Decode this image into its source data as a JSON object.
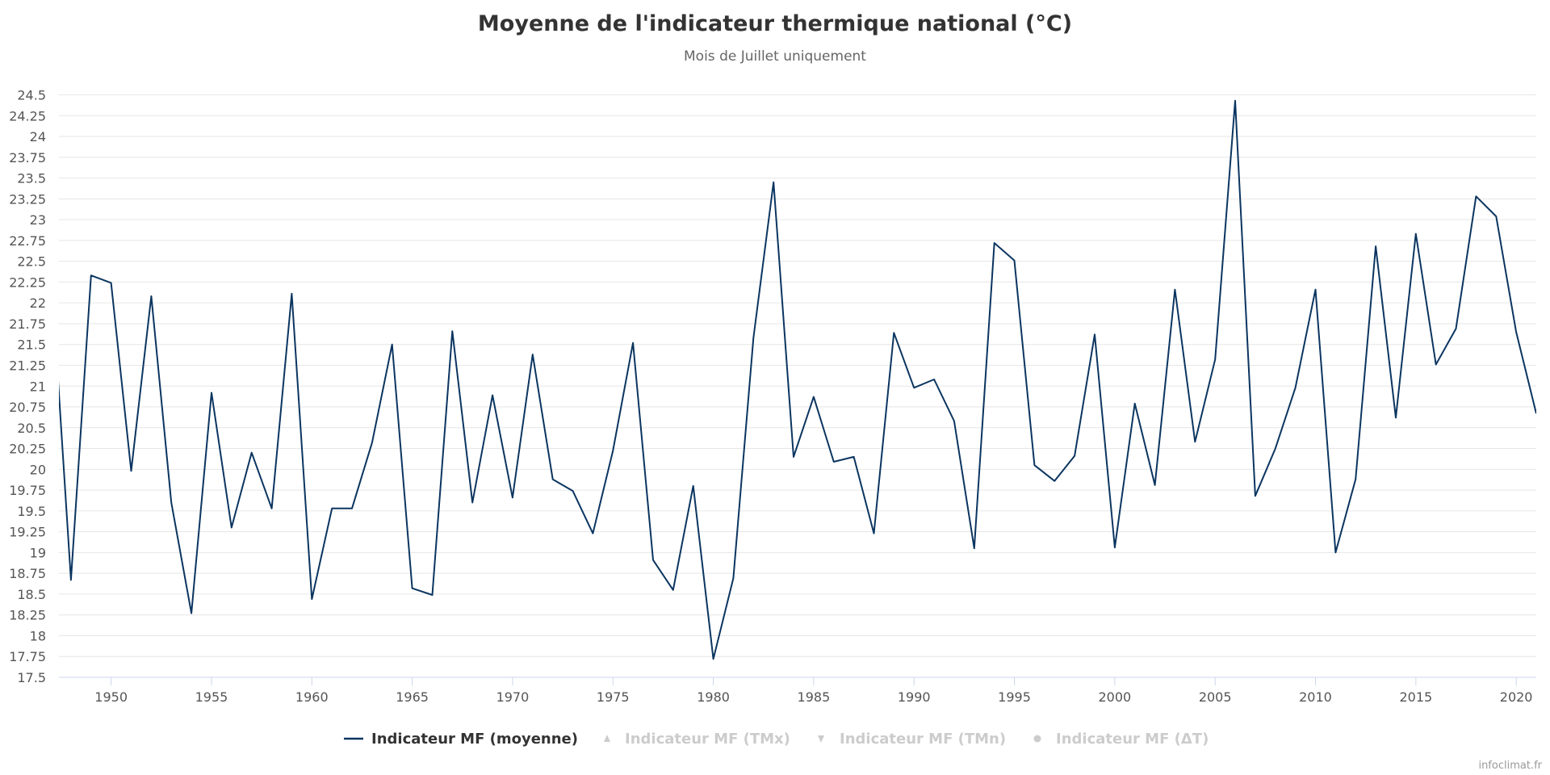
{
  "chart_data": {
    "type": "line",
    "title": "Moyenne de l'indicateur thermique national (°C)",
    "subtitle": "Mois de Juillet uniquement",
    "xlabel": "",
    "ylabel": "",
    "xlim": [
      1947.4,
      2021
    ],
    "ylim": [
      17.5,
      24.5
    ],
    "y_tick_step": 0.25,
    "x_ticks": [
      1950,
      1955,
      1960,
      1965,
      1970,
      1975,
      1980,
      1985,
      1990,
      1995,
      2000,
      2005,
      2010,
      2015,
      2020
    ],
    "grid": true,
    "legend_position": "bottom",
    "series": [
      {
        "name": "Indicateur MF (moyenne)",
        "color": "#0b3560",
        "visible": true,
        "x": [
          1947,
          1948,
          1949,
          1950,
          1951,
          1952,
          1953,
          1954,
          1955,
          1956,
          1957,
          1958,
          1959,
          1960,
          1961,
          1962,
          1963,
          1964,
          1965,
          1966,
          1967,
          1968,
          1969,
          1970,
          1971,
          1972,
          1973,
          1974,
          1975,
          1976,
          1977,
          1978,
          1979,
          1980,
          1981,
          1982,
          1983,
          1984,
          1985,
          1986,
          1987,
          1988,
          1989,
          1990,
          1991,
          1992,
          1993,
          1994,
          1995,
          1996,
          1997,
          1998,
          1999,
          2000,
          2001,
          2002,
          2003,
          2004,
          2005,
          2006,
          2007,
          2008,
          2009,
          2010,
          2011,
          2012,
          2013,
          2014,
          2015,
          2016,
          2017,
          2018,
          2019,
          2020,
          2021
        ],
        "values": [
          22.4,
          18.67,
          22.33,
          22.24,
          19.98,
          22.08,
          19.6,
          18.27,
          20.92,
          19.3,
          20.2,
          19.53,
          22.11,
          18.44,
          19.53,
          19.53,
          20.32,
          21.5,
          18.57,
          18.49,
          21.66,
          19.6,
          20.89,
          19.66,
          21.38,
          19.88,
          19.74,
          19.23,
          20.22,
          21.52,
          18.91,
          18.55,
          19.8,
          17.72,
          18.69,
          21.58,
          23.45,
          20.15,
          20.87,
          20.09,
          20.15,
          19.23,
          21.64,
          20.98,
          21.08,
          20.58,
          19.05,
          22.72,
          22.51,
          20.05,
          19.86,
          20.16,
          21.62,
          19.06,
          20.79,
          19.81,
          22.16,
          20.33,
          21.32,
          24.43,
          19.68,
          20.25,
          20.98,
          22.16,
          19.0,
          19.88,
          22.68,
          20.62,
          22.83,
          21.26,
          21.69,
          23.28,
          23.04,
          21.65,
          20.67
        ]
      },
      {
        "name": "Indicateur MF (TMx)",
        "color": "#cccccc",
        "visible": false,
        "marker": "triangle-up-icon"
      },
      {
        "name": "Indicateur MF (TMn)",
        "color": "#cccccc",
        "visible": false,
        "marker": "triangle-down-icon"
      },
      {
        "name": "Indicateur MF (ΔT)",
        "color": "#cccccc",
        "visible": false,
        "marker": "circle-icon"
      }
    ],
    "colors": {
      "grid": "#e6e6e6",
      "axis": "#ccd6eb",
      "legend_active": "#333333",
      "legend_inactive": "#cccccc"
    }
  },
  "credits": "infoclimat.fr"
}
